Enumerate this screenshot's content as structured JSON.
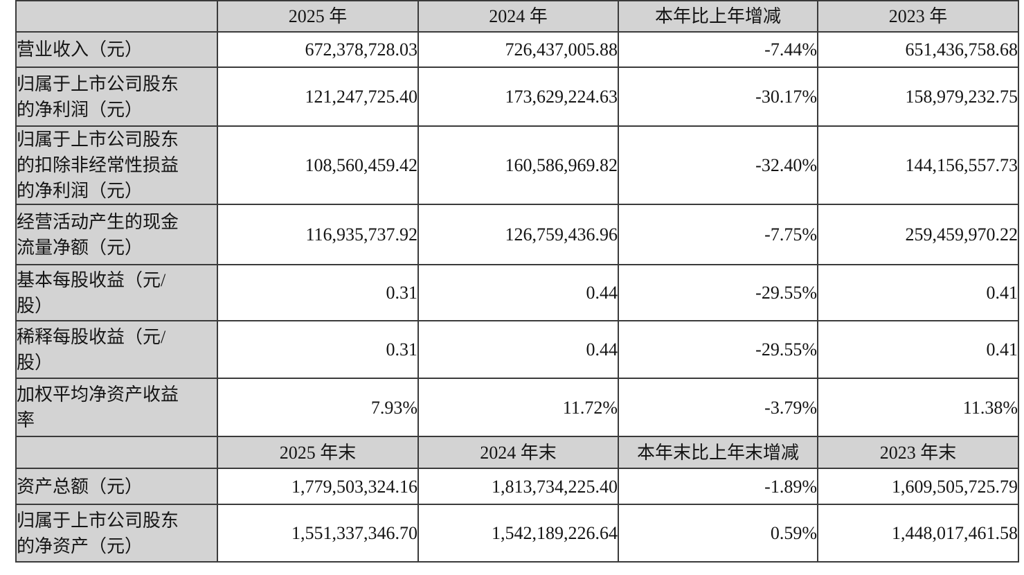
{
  "colors": {
    "cell_bg_gray": "#d3d3d3",
    "border": "#3a3a3a",
    "text": "#141414"
  },
  "chart_data": {
    "type": "table",
    "title": "",
    "column_count": 5,
    "rows": [
      {
        "type": "header",
        "cells": [
          "",
          "2025 年",
          "2024 年",
          "本年比上年增减",
          "2023 年"
        ]
      },
      {
        "type": "data",
        "cells": [
          "营业收入（元）",
          "672,378,728.03",
          "726,437,005.88",
          "-7.44%",
          "651,436,758.68"
        ]
      },
      {
        "type": "data",
        "cells": [
          "归属于上市公司股东\n的净利润（元）",
          "121,247,725.40",
          "173,629,224.63",
          "-30.17%",
          "158,979,232.75"
        ]
      },
      {
        "type": "data",
        "cells": [
          "归属于上市公司股东\n的扣除非经常性损益\n的净利润（元）",
          "108,560,459.42",
          "160,586,969.82",
          "-32.40%",
          "144,156,557.73"
        ]
      },
      {
        "type": "data",
        "cells": [
          "经营活动产生的现金\n流量净额（元）",
          "116,935,737.92",
          "126,759,436.96",
          "-7.75%",
          "259,459,970.22"
        ]
      },
      {
        "type": "data",
        "cells": [
          "基本每股收益（元/\n股）",
          "0.31",
          "0.44",
          "-29.55%",
          "0.41"
        ]
      },
      {
        "type": "data",
        "cells": [
          "稀释每股收益（元/\n股）",
          "0.31",
          "0.44",
          "-29.55%",
          "0.41"
        ]
      },
      {
        "type": "data",
        "cells": [
          "加权平均净资产收益\n率",
          "7.93%",
          "11.72%",
          "-3.79%",
          "11.38%"
        ]
      },
      {
        "type": "header",
        "cells": [
          "",
          "2025 年末",
          "2024 年末",
          "本年末比上年末增减",
          "2023 年末"
        ]
      },
      {
        "type": "data",
        "cells": [
          "资产总额（元）",
          "1,779,503,324.16",
          "1,813,734,225.40",
          "-1.89%",
          "1,609,505,725.79"
        ]
      },
      {
        "type": "data",
        "cells": [
          "归属于上市公司股东\n的净资产（元）",
          "1,551,337,346.70",
          "1,542,189,226.64",
          "0.59%",
          "1,448,017,461.58"
        ]
      }
    ]
  }
}
